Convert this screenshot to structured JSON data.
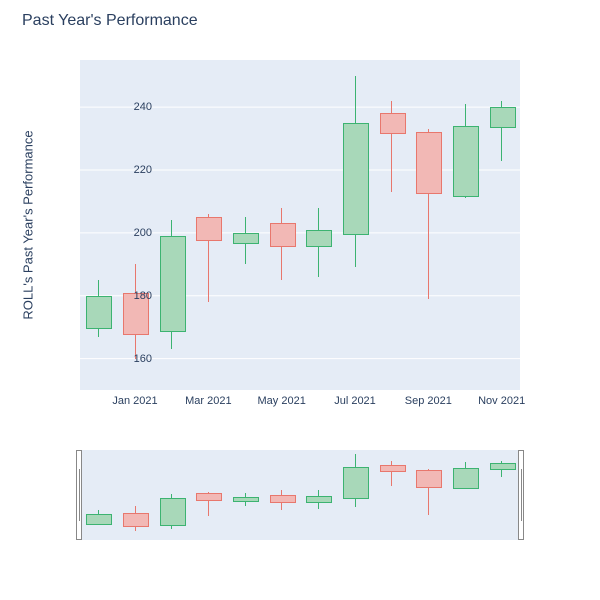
{
  "title": "Past Year's Performance",
  "ylabel": "ROLL's Past Year's Performance",
  "colors": {
    "up_fill": "#a8d8b9",
    "up_line": "#3cb371",
    "down_fill": "#f2b8b5",
    "down_line": "#e8776d",
    "plot_bg": "#e5ecf6",
    "grid": "#ffffff",
    "text": "#2a3f5f"
  },
  "main": {
    "ylim": [
      150,
      255
    ],
    "yticks": [
      160,
      180,
      200,
      220,
      240
    ],
    "xticks": [
      {
        "pos": 1.5,
        "label": "Jan 2021"
      },
      {
        "pos": 3.5,
        "label": "Mar 2021"
      },
      {
        "pos": 5.5,
        "label": "May 2021"
      },
      {
        "pos": 7.5,
        "label": "Jul 2021"
      },
      {
        "pos": 9.5,
        "label": "Sep 2021"
      },
      {
        "pos": 11.5,
        "label": "Nov 2021"
      }
    ],
    "x_count": 12,
    "candle_width": 0.65
  },
  "candles": [
    {
      "dir": "up",
      "open": 170,
      "close": 180,
      "low": 167,
      "high": 185
    },
    {
      "dir": "down",
      "open": 181,
      "close": 168,
      "low": 160,
      "high": 190
    },
    {
      "dir": "up",
      "open": 169,
      "close": 199,
      "low": 163,
      "high": 204
    },
    {
      "dir": "down",
      "open": 205,
      "close": 198,
      "low": 178,
      "high": 206
    },
    {
      "dir": "up",
      "open": 197,
      "close": 200,
      "low": 190,
      "high": 205
    },
    {
      "dir": "down",
      "open": 203,
      "close": 196,
      "low": 185,
      "high": 208
    },
    {
      "dir": "up",
      "open": 196,
      "close": 201,
      "low": 186,
      "high": 208
    },
    {
      "dir": "up",
      "open": 200,
      "close": 235,
      "low": 189,
      "high": 250
    },
    {
      "dir": "down",
      "open": 238,
      "close": 232,
      "low": 213,
      "high": 242
    },
    {
      "dir": "down",
      "open": 232,
      "close": 213,
      "low": 179,
      "high": 233
    },
    {
      "dir": "up",
      "open": 212,
      "close": 234,
      "low": 211,
      "high": 241
    },
    {
      "dir": "up",
      "open": 234,
      "close": 240,
      "low": 223,
      "high": 242
    }
  ],
  "mini": {
    "ylim": [
      150,
      255
    ]
  }
}
